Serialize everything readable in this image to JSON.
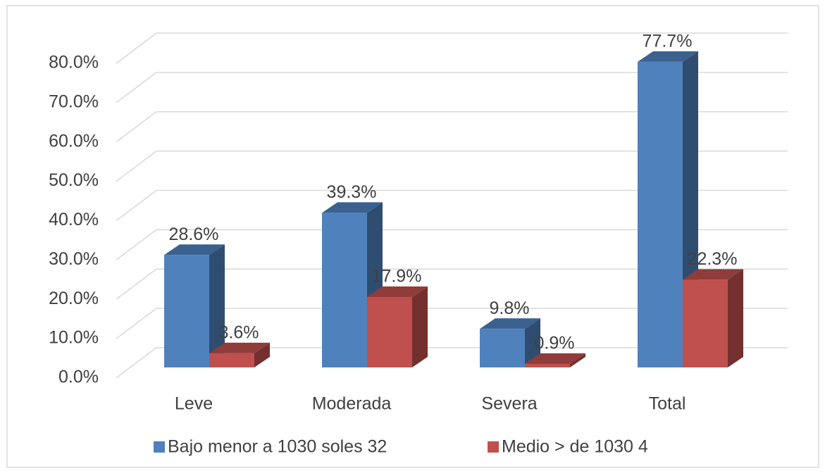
{
  "chart_data": {
    "type": "bar3d",
    "categories": [
      "Leve",
      "Moderada",
      "Severa",
      "Total"
    ],
    "series": [
      {
        "name": "Bajo menor a 1030 soles 32",
        "color": "#4f81bd",
        "values": [
          28.6,
          39.3,
          9.8,
          77.7
        ],
        "value_labels": [
          "28.6%",
          "39.3%",
          "9.8%",
          "77.7%"
        ]
      },
      {
        "name": "Medio > de 1030 4",
        "color": "#c0504d",
        "values": [
          3.6,
          17.9,
          0.9,
          22.3
        ],
        "value_labels": [
          "3.6%",
          "17.9%",
          "0.9%",
          "22.3%"
        ]
      }
    ],
    "ylim": [
      0,
      80
    ],
    "yticks": [
      {
        "value": 0,
        "label": "0.0%"
      },
      {
        "value": 10,
        "label": "10.0%"
      },
      {
        "value": 20,
        "label": "20.0%"
      },
      {
        "value": 30,
        "label": "30.0%"
      },
      {
        "value": 40,
        "label": "40.0%"
      },
      {
        "value": 50,
        "label": "50.0%"
      },
      {
        "value": 60,
        "label": "60.0%"
      },
      {
        "value": 70,
        "label": "70.0%"
      },
      {
        "value": 80,
        "label": "80.0%"
      }
    ],
    "grid": true,
    "legend": "bottom"
  }
}
